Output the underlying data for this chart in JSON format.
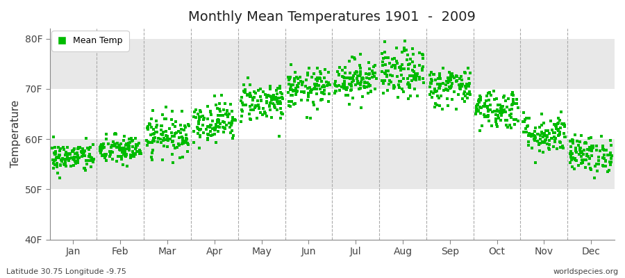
{
  "title": "Monthly Mean Temperatures 1901  -  2009",
  "ylabel": "Temperature",
  "xlabel_months": [
    "Jan",
    "Feb",
    "Mar",
    "Apr",
    "May",
    "Jun",
    "Jul",
    "Aug",
    "Sep",
    "Oct",
    "Nov",
    "Dec"
  ],
  "ytick_labels": [
    "40F",
    "50F",
    "60F",
    "70F",
    "80F"
  ],
  "ytick_values": [
    40,
    50,
    60,
    70,
    80
  ],
  "ylim": [
    40,
    82
  ],
  "xlim": [
    0,
    12
  ],
  "legend_label": "Mean Temp",
  "dot_color": "#00bb00",
  "background_color": "#ffffff",
  "band_color": "#e8e8e8",
  "footer_left": "Latitude 30.75 Longitude -9.75",
  "footer_right": "worldspecies.org",
  "monthly_mean_F": [
    56.3,
    57.8,
    60.8,
    63.5,
    67.5,
    70.0,
    72.0,
    73.0,
    70.5,
    66.0,
    61.0,
    57.0
  ],
  "monthly_std_F": [
    1.5,
    1.5,
    2.0,
    2.0,
    2.0,
    2.0,
    2.0,
    2.5,
    2.0,
    2.0,
    2.0,
    1.8
  ],
  "n_years": 109,
  "seed": 42
}
